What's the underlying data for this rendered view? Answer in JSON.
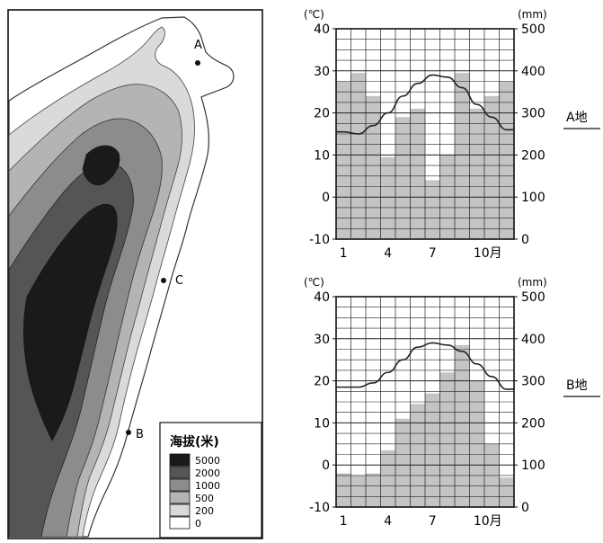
{
  "map": {
    "points": [
      {
        "label": "A"
      },
      {
        "label": "C"
      },
      {
        "label": "B"
      }
    ],
    "legend": {
      "title": "海拔(米)",
      "levels": [
        {
          "label": "5000",
          "color": "#1a1a1a"
        },
        {
          "label": "2000",
          "color": "#555555"
        },
        {
          "label": "1000",
          "color": "#8c8c8c"
        },
        {
          "label": "500",
          "color": "#b4b4b4"
        },
        {
          "label": "200",
          "color": "#d9d9d9"
        },
        {
          "label": "0",
          "color": "#ffffff"
        }
      ]
    }
  },
  "chart_data": [
    {
      "type": "bar+line",
      "side_label": "A地",
      "unit_left": "(℃)",
      "unit_right": "(mm)",
      "x_ticks": [
        "1",
        "4",
        "7",
        "10月"
      ],
      "months": [
        1,
        2,
        3,
        4,
        5,
        6,
        7,
        8,
        9,
        10,
        11,
        12
      ],
      "temp_lim": [
        -10,
        40
      ],
      "precip_lim": [
        0,
        500
      ],
      "temp_ticks": [
        -10,
        0,
        10,
        20,
        30,
        40
      ],
      "precip_ticks": [
        0,
        100,
        200,
        300,
        400,
        500
      ],
      "series": [
        {
          "kind": "bar",
          "values": [
            375,
            395,
            340,
            195,
            290,
            310,
            140,
            200,
            395,
            310,
            340,
            375
          ]
        },
        {
          "kind": "line",
          "values": [
            15.5,
            15,
            17,
            20,
            24,
            27,
            29,
            28.5,
            26,
            22,
            19,
            16
          ]
        }
      ]
    },
    {
      "type": "bar+line",
      "side_label": "B地",
      "unit_left": "(℃)",
      "unit_right": "(mm)",
      "x_ticks": [
        "1",
        "4",
        "7",
        "10月"
      ],
      "months": [
        1,
        2,
        3,
        4,
        5,
        6,
        7,
        8,
        9,
        10,
        11,
        12
      ],
      "temp_lim": [
        -10,
        40
      ],
      "precip_lim": [
        0,
        500
      ],
      "temp_ticks": [
        -10,
        0,
        10,
        20,
        30,
        40
      ],
      "precip_ticks": [
        0,
        100,
        200,
        300,
        400,
        500
      ],
      "series": [
        {
          "kind": "bar",
          "values": [
            80,
            75,
            80,
            135,
            210,
            245,
            270,
            320,
            385,
            300,
            150,
            70
          ]
        },
        {
          "kind": "line",
          "values": [
            18.5,
            18.5,
            19.5,
            22,
            25,
            28,
            29,
            28.5,
            27,
            24,
            21,
            18
          ]
        }
      ]
    }
  ]
}
